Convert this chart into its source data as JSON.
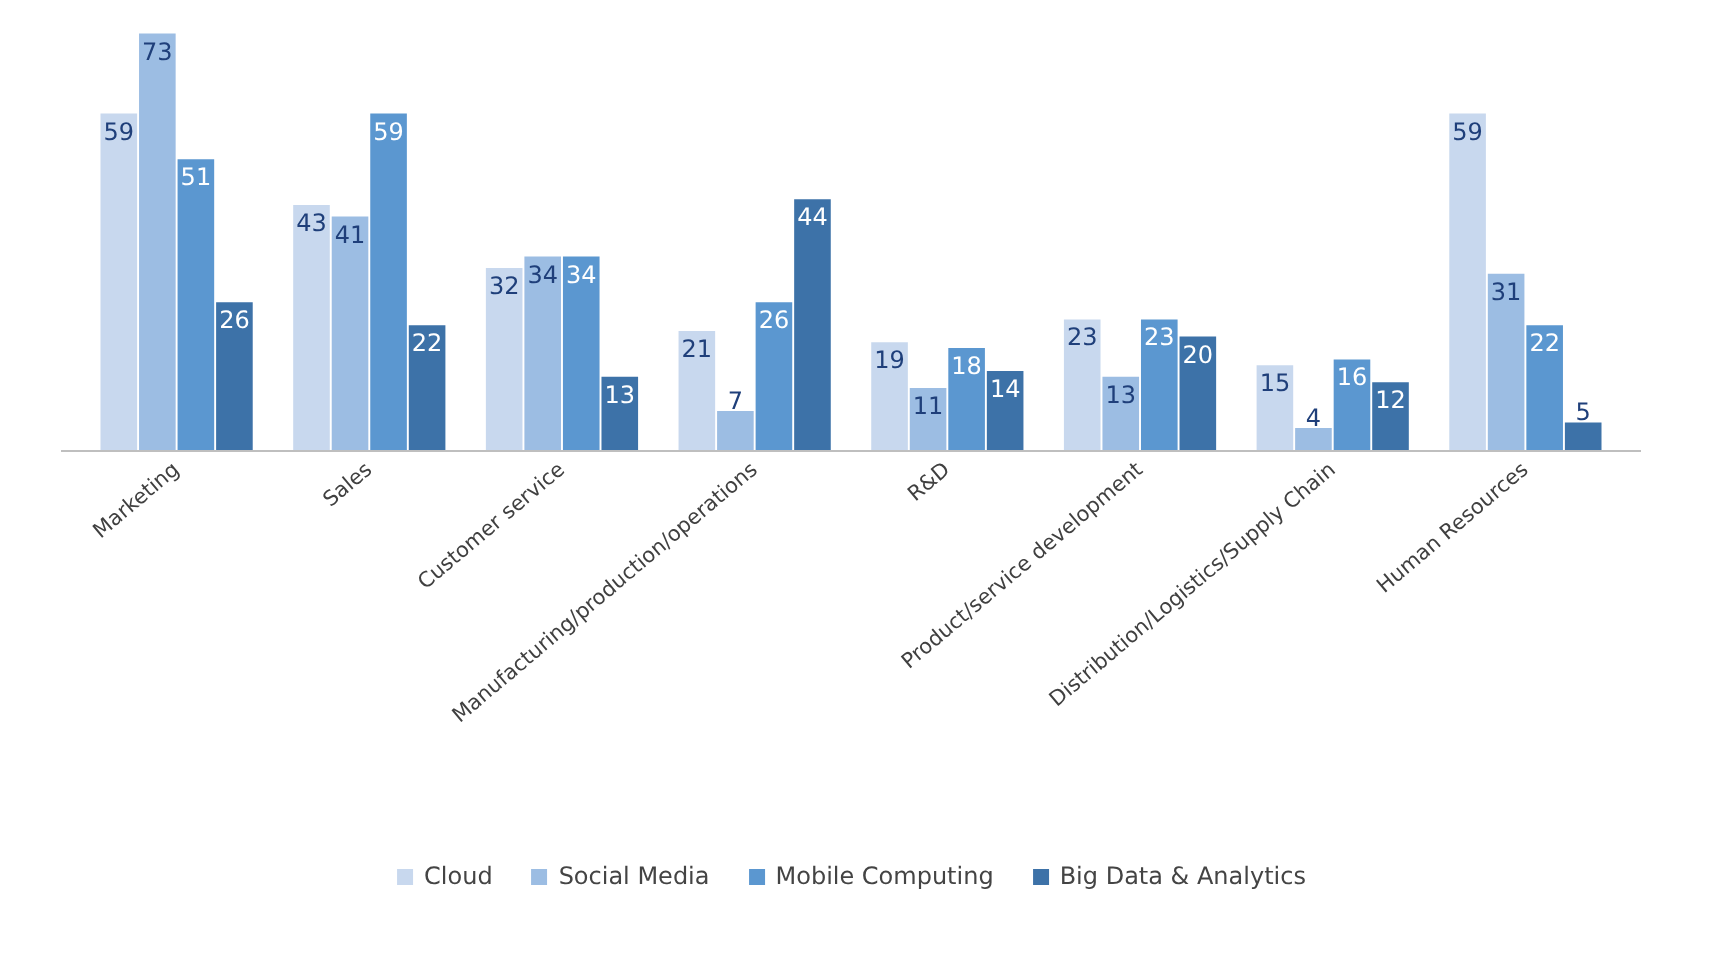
{
  "chart_data": {
    "type": "bar",
    "categories": [
      "Marketing",
      "Sales",
      "Customer service",
      "Manufacturing/production/operations",
      "R&D",
      "Product/service development",
      "Distribution/Logistics/Supply Chain",
      "Human Resources"
    ],
    "series": [
      {
        "name": "Cloud",
        "color": "#c8d8ee",
        "values": [
          59,
          43,
          32,
          21,
          19,
          23,
          15,
          59
        ]
      },
      {
        "name": "Social Media",
        "color": "#9cbde3",
        "values": [
          73,
          41,
          34,
          7,
          11,
          13,
          4,
          31
        ]
      },
      {
        "name": "Mobile Computing",
        "color": "#5b97d0",
        "values": [
          51,
          59,
          34,
          26,
          18,
          23,
          16,
          22
        ]
      },
      {
        "name": "Big Data & Analytics",
        "color": "#3d72a8",
        "values": [
          26,
          22,
          13,
          44,
          14,
          20,
          12,
          5
        ]
      }
    ],
    "data_labels": true,
    "legend": "bottom",
    "grid": false
  }
}
